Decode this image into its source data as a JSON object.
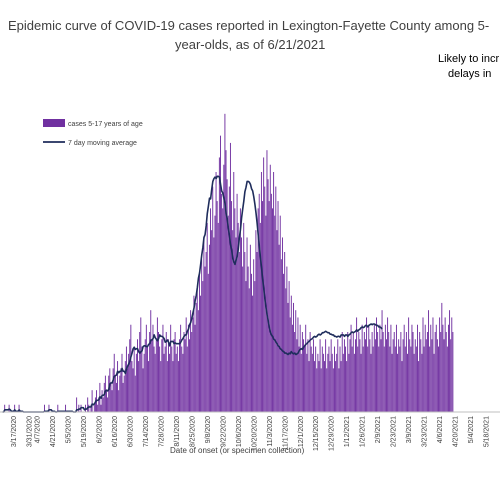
{
  "chart_data": {
    "type": "bar",
    "title_line1": "Epidemic curve of COVID-19 cases reported in Lexington-Fayette County among 5-",
    "title_line2": "year-olds, as of 6/21/2021",
    "annotation_line1": "Likely to incr",
    "annotation_line2": "delays in",
    "xlabel": "Date of onset (or specimen collection)",
    "ylabel": "",
    "date_start": "2020-03-07",
    "date_end": "2021-05-30",
    "ylim": [
      0,
      44
    ],
    "grid": false,
    "legend_position": "top-left",
    "tick_labels": [
      "3/17/2020",
      "3/31/2020",
      "4/7/2020",
      "4/21/2020",
      "5/5/2020",
      "5/19/2020",
      "6/2/2020",
      "6/16/2020",
      "6/30/2020",
      "7/14/2020",
      "7/28/2020",
      "8/11/2020",
      "8/25/2020",
      "9/8/2020",
      "9/22/2020",
      "10/6/2020",
      "10/20/2020",
      "11/3/2020",
      "11/17/2020",
      "12/1/2020",
      "12/15/2020",
      "12/29/2020",
      "1/12/2021",
      "1/26/2021",
      "2/9/2021",
      "2/23/2021",
      "3/9/2021",
      "3/23/2021",
      "4/6/2021",
      "4/20/2021",
      "5/4/2021",
      "5/18/2021"
    ],
    "series": [
      {
        "name": "cases 5-17 years of age",
        "color": "#7030a0",
        "kind": "bar",
        "values": [
          0,
          0,
          1,
          0,
          0,
          0,
          1,
          0,
          0,
          0,
          0,
          1,
          0,
          0,
          0,
          1,
          0,
          0,
          0,
          0,
          0,
          0,
          0,
          0,
          0,
          0,
          0,
          0,
          0,
          0,
          0,
          0,
          0,
          0,
          0,
          0,
          0,
          0,
          1,
          0,
          0,
          0,
          1,
          0,
          0,
          0,
          0,
          0,
          0,
          0,
          1,
          0,
          0,
          0,
          0,
          0,
          0,
          1,
          0,
          0,
          0,
          0,
          0,
          0,
          0,
          0,
          0,
          2,
          0,
          1,
          0,
          1,
          0,
          0,
          0,
          1,
          0,
          2,
          1,
          0,
          1,
          3,
          0,
          1,
          2,
          3,
          1,
          2,
          4,
          1,
          3,
          2,
          4,
          5,
          3,
          2,
          5,
          6,
          4,
          3,
          6,
          8,
          5,
          4,
          7,
          3,
          5,
          6,
          8,
          4,
          5,
          7,
          9,
          6,
          8,
          10,
          12,
          7,
          6,
          9,
          5,
          8,
          10,
          7,
          11,
          13,
          9,
          6,
          8,
          10,
          12,
          9,
          7,
          11,
          14,
          10,
          12,
          9,
          8,
          10,
          13,
          11,
          9,
          7,
          10,
          12,
          8,
          9,
          11,
          7,
          10,
          8,
          12,
          9,
          7,
          10,
          11,
          8,
          9,
          7,
          10,
          12,
          9,
          8,
          11,
          10,
          13,
          9,
          12,
          10,
          14,
          11,
          13,
          16,
          12,
          15,
          17,
          14,
          19,
          16,
          21,
          18,
          24,
          20,
          22,
          26,
          19,
          23,
          28,
          25,
          31,
          24,
          27,
          33,
          29,
          26,
          35,
          38,
          30,
          28,
          34,
          41,
          36,
          32,
          27,
          31,
          37,
          29,
          25,
          33,
          28,
          24,
          30,
          26,
          22,
          28,
          24,
          20,
          26,
          22,
          18,
          24,
          20,
          17,
          23,
          19,
          16,
          21,
          18,
          25,
          22,
          28,
          30,
          26,
          33,
          29,
          35,
          31,
          27,
          36,
          32,
          29,
          34,
          30,
          28,
          33,
          27,
          31,
          25,
          29,
          23,
          27,
          21,
          24,
          19,
          22,
          17,
          20,
          15,
          18,
          13,
          16,
          12,
          15,
          11,
          14,
          10,
          13,
          9,
          12,
          8,
          11,
          10,
          9,
          12,
          8,
          10,
          7,
          11,
          9,
          8,
          10,
          7,
          9,
          6,
          8,
          7,
          10,
          6,
          9,
          8,
          7,
          10,
          6,
          8,
          9,
          7,
          10,
          8,
          6,
          9,
          7,
          8,
          10,
          6,
          9,
          7,
          11,
          8,
          10,
          9,
          7,
          11,
          8,
          10,
          12,
          9,
          11,
          8,
          10,
          13,
          9,
          11,
          10,
          8,
          12,
          9,
          11,
          10,
          13,
          9,
          12,
          10,
          8,
          11,
          9,
          12,
          10,
          13,
          11,
          9,
          12,
          10,
          14,
          11,
          9,
          12,
          10,
          13,
          11,
          9,
          12,
          8,
          10,
          11,
          9,
          12,
          8,
          10,
          9,
          11,
          7,
          10,
          12,
          9,
          11,
          8,
          13,
          10,
          9,
          12,
          11,
          8,
          10,
          9,
          12,
          7,
          11,
          10,
          8,
          13,
          9,
          12,
          10,
          11,
          14,
          9,
          12,
          10,
          13,
          8,
          11,
          12,
          10,
          9,
          13,
          11,
          15,
          12,
          10,
          13,
          11,
          9,
          12,
          14,
          10,
          13,
          11
        ]
      },
      {
        "name": "7 day moving average",
        "color": "#1f2d5c",
        "kind": "line",
        "values": [
          0,
          0,
          0.3,
          0.3,
          0.3,
          0.3,
          0.4,
          0.3,
          0.1,
          0.1,
          0.1,
          0.3,
          0.1,
          0.1,
          0.1,
          0.3,
          0.1,
          0.1,
          0.1,
          0,
          0,
          0,
          0,
          0,
          0,
          0,
          0,
          0,
          0,
          0,
          0,
          0,
          0,
          0,
          0,
          0,
          0,
          0,
          0.1,
          0.1,
          0.1,
          0.1,
          0.3,
          0.3,
          0.3,
          0.1,
          0.1,
          0.1,
          0,
          0,
          0.1,
          0.1,
          0.1,
          0.1,
          0.1,
          0.1,
          0.1,
          0.1,
          0.1,
          0.1,
          0.1,
          0.1,
          0.1,
          0.1,
          0,
          0,
          0,
          0.3,
          0.3,
          0.4,
          0.4,
          0.6,
          0.6,
          0.6,
          0.3,
          0.4,
          0.4,
          0.6,
          0.7,
          0.7,
          0.7,
          1.1,
          1,
          1.1,
          1.4,
          1.6,
          1.6,
          1.7,
          2.1,
          1.9,
          2.3,
          2.3,
          2.4,
          2.9,
          3,
          2.9,
          3.1,
          3.9,
          4,
          4,
          4.4,
          4.9,
          5,
          5.1,
          5.6,
          5.4,
          5.6,
          5.6,
          6,
          5.6,
          5.6,
          5.3,
          5.9,
          6.3,
          6.6,
          7,
          7.6,
          8.1,
          8.7,
          8.9,
          8.6,
          8.7,
          8.7,
          8.3,
          8.1,
          8.3,
          8.4,
          9,
          9.1,
          9.1,
          9,
          9,
          9.3,
          9.4,
          9.9,
          9.9,
          10.1,
          10.6,
          10.2,
          10,
          9.8,
          10.1,
          10.6,
          10.4,
          10.4,
          10.3,
          10.1,
          9.6,
          9.7,
          9.9,
          9.6,
          9.1,
          9.7,
          9.7,
          9.7,
          9.4,
          9.5,
          9.4,
          9.4,
          9.4,
          9.4,
          9.6,
          9.9,
          10.1,
          10.4,
          10.6,
          10.6,
          11.1,
          11.4,
          12,
          12.3,
          12.9,
          13.6,
          14.3,
          15.3,
          16,
          17.1,
          18.4,
          19.1,
          20.3,
          21.6,
          22.6,
          24,
          24.4,
          25.6,
          27.3,
          28.3,
          29.4,
          29.3,
          30.6,
          31.7,
          32.1,
          32.3,
          32.1,
          32.4,
          32.4,
          32.3,
          31.3,
          30.4,
          30.1,
          29.4,
          28.7,
          27.3,
          26.6,
          25.3,
          24.3,
          23,
          22.3,
          21.1,
          20.6,
          20.3,
          20.9,
          21.4,
          22.4,
          24,
          25.1,
          26.7,
          27.9,
          29,
          30.3,
          30.9,
          31.7,
          31.7,
          31.6,
          31.3,
          30.7,
          30.4,
          29.6,
          28.6,
          27.4,
          26,
          24.4,
          22.9,
          21.3,
          19.9,
          18.3,
          17,
          15.6,
          14.4,
          13.4,
          12.6,
          11.7,
          11,
          10.6,
          10.4,
          10,
          9.9,
          9.6,
          9.4,
          9.1,
          9,
          8.7,
          8.6,
          8.4,
          8.3,
          8.1,
          8.1,
          8,
          7.9,
          8.1,
          8,
          8.3,
          8.1,
          8,
          8.1,
          7.9,
          8,
          8.1,
          8.4,
          8.6,
          8.7,
          8.6,
          8.9,
          9.1,
          9.3,
          9.4,
          9.6,
          9.7,
          9.9,
          10,
          10.1,
          10.3,
          10.4,
          10.3,
          10.4,
          10.6,
          10.7,
          10.6,
          10.7,
          10.9,
          10.9,
          11,
          11.1,
          11,
          10.9,
          10.9,
          10.7,
          10.7,
          10.6,
          10.6,
          10.4,
          10.4,
          10.3,
          10.4,
          10.4,
          10.3,
          10.6,
          10.6,
          10.6,
          10.4,
          10.6,
          10.6,
          10.4,
          10.6,
          10.7,
          10.9,
          11,
          10.9,
          11,
          11.1,
          11.3,
          11.1,
          11.3,
          11.4,
          11.6,
          11.7,
          11.6,
          11.7,
          11.9,
          11.9,
          11.7,
          11.9,
          12,
          12.1,
          12,
          12.1,
          12.1,
          12,
          11.9,
          11.9,
          11.7,
          11.7,
          11.6,
          11.4
        ]
      }
    ]
  }
}
